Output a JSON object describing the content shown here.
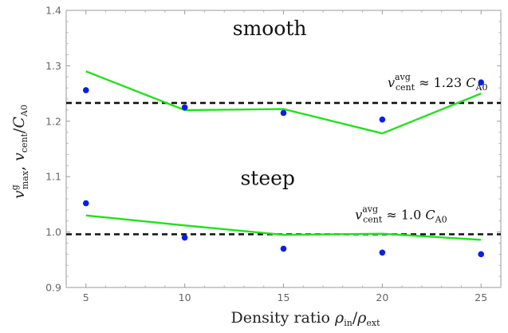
{
  "chart_data": {
    "type": "scatter",
    "xlabel": "Density ratio ρin/ρext",
    "ylabel": "vgmax, vcent/CA0",
    "xlim": [
      4,
      26
    ],
    "ylim": [
      0.9,
      1.4
    ],
    "x_ticks": [
      "5",
      "10",
      "15",
      "20",
      "25"
    ],
    "y_ticks": [
      "0.9",
      "1.0",
      "1.1",
      "1.2",
      "1.3",
      "1.4"
    ],
    "grid": false,
    "colors": {
      "points": "#0a1fe6",
      "lines": "#22e01c",
      "reference": "#111111"
    },
    "series": [
      {
        "label": "smooth",
        "kind": "points",
        "x": [
          5,
          10,
          15,
          20,
          25
        ],
        "y": [
          1.256,
          1.225,
          1.215,
          1.203,
          1.27
        ]
      },
      {
        "label": "smooth",
        "kind": "line",
        "x": [
          5,
          10,
          15,
          20,
          25
        ],
        "y": [
          1.29,
          1.22,
          1.222,
          1.178,
          1.25
        ]
      },
      {
        "label": "steep",
        "kind": "points",
        "x": [
          5,
          10,
          15,
          20,
          25
        ],
        "y": [
          1.052,
          0.99,
          0.97,
          0.963,
          0.96
        ]
      },
      {
        "label": "steep",
        "kind": "line",
        "x": [
          5,
          10,
          15,
          20,
          25
        ],
        "y": [
          1.03,
          1.012,
          0.995,
          0.997,
          0.986
        ]
      }
    ],
    "reference_lines": [
      {
        "y": 1.233,
        "style": "dashed"
      },
      {
        "y": 0.996,
        "style": "dashed"
      }
    ],
    "annotations": [
      {
        "text": "smooth",
        "x": 14.3,
        "y": 1.355
      },
      {
        "text": "vcentavg ≈ 1.23 CA0",
        "x": 22.8,
        "y": 1.262
      },
      {
        "text": "steep",
        "x": 14.2,
        "y": 1.085
      },
      {
        "text": "vcentavg ≈ 1.0 CA0",
        "x": 20.95,
        "y": 1.023
      }
    ]
  }
}
